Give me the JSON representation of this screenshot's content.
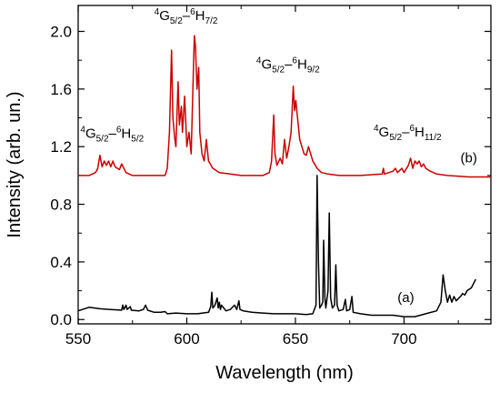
{
  "chart_data": {
    "type": "line",
    "title": "",
    "xlabel": "Wavelength (nm)",
    "ylabel": "Intensity (arb. un.)",
    "xlim": [
      550,
      740
    ],
    "ylim": [
      -0.03,
      2.18
    ],
    "xticks": [
      550,
      600,
      650,
      700
    ],
    "yticks": [
      0.0,
      0.4,
      0.8,
      1.2,
      1.6,
      2.0
    ],
    "x_tick_labels": [
      "550",
      "600",
      "650",
      "700"
    ],
    "y_tick_labels": [
      "0.0",
      "0.4",
      "0.8",
      "1.2",
      "1.6",
      "2.0"
    ],
    "grid": false,
    "series": [
      {
        "name": "(a)",
        "color": "#000000",
        "points": [
          [
            550,
            0.06
          ],
          [
            555,
            0.085
          ],
          [
            560,
            0.075
          ],
          [
            565,
            0.07
          ],
          [
            570,
            0.065
          ],
          [
            570.5,
            0.1
          ],
          [
            571,
            0.07
          ],
          [
            572,
            0.1
          ],
          [
            572.5,
            0.07
          ],
          [
            574,
            0.09
          ],
          [
            574.5,
            0.065
          ],
          [
            578,
            0.06
          ],
          [
            580,
            0.07
          ],
          [
            581,
            0.1
          ],
          [
            582,
            0.065
          ],
          [
            585,
            0.05
          ],
          [
            588,
            0.05
          ],
          [
            590,
            0.055
          ],
          [
            591,
            0.04
          ],
          [
            595,
            0.045
          ],
          [
            600,
            0.04
          ],
          [
            605,
            0.04
          ],
          [
            610,
            0.05
          ],
          [
            611,
            0.09
          ],
          [
            611.5,
            0.19
          ],
          [
            612,
            0.08
          ],
          [
            613,
            0.1
          ],
          [
            614,
            0.15
          ],
          [
            614.5,
            0.08
          ],
          [
            615,
            0.12
          ],
          [
            615.5,
            0.07
          ],
          [
            616,
            0.1
          ],
          [
            617,
            0.08
          ],
          [
            618,
            0.06
          ],
          [
            620,
            0.07
          ],
          [
            622,
            0.1
          ],
          [
            623,
            0.07
          ],
          [
            624,
            0.13
          ],
          [
            624.5,
            0.07
          ],
          [
            626,
            0.06
          ],
          [
            630,
            0.05
          ],
          [
            635,
            0.045
          ],
          [
            640,
            0.04
          ],
          [
            645,
            0.04
          ],
          [
            650,
            0.04
          ],
          [
            655,
            0.035
          ],
          [
            658,
            0.04
          ],
          [
            659.5,
            0.1
          ],
          [
            660,
            1.0
          ],
          [
            660.6,
            0.4
          ],
          [
            661.2,
            0.08
          ],
          [
            662,
            0.1
          ],
          [
            662.6,
            0.12
          ],
          [
            663,
            0.55
          ],
          [
            663.6,
            0.15
          ],
          [
            664,
            0.08
          ],
          [
            665,
            0.2
          ],
          [
            665.6,
            0.74
          ],
          [
            666.2,
            0.15
          ],
          [
            667,
            0.08
          ],
          [
            668,
            0.1
          ],
          [
            668.6,
            0.38
          ],
          [
            669.2,
            0.1
          ],
          [
            670,
            0.06
          ],
          [
            672,
            0.07
          ],
          [
            673,
            0.14
          ],
          [
            673.6,
            0.06
          ],
          [
            675,
            0.07
          ],
          [
            676,
            0.16
          ],
          [
            676.6,
            0.05
          ],
          [
            680,
            0.04
          ],
          [
            685,
            0.03
          ],
          [
            690,
            0.03
          ],
          [
            695,
            0.03
          ],
          [
            700,
            0.02
          ],
          [
            705,
            0.02
          ],
          [
            710,
            0.04
          ],
          [
            715,
            0.06
          ],
          [
            717,
            0.12
          ],
          [
            718,
            0.31
          ],
          [
            719,
            0.2
          ],
          [
            720,
            0.12
          ],
          [
            721,
            0.17
          ],
          [
            722,
            0.12
          ],
          [
            723,
            0.16
          ],
          [
            724,
            0.13
          ],
          [
            726,
            0.16
          ],
          [
            727,
            0.18
          ],
          [
            728,
            0.17
          ],
          [
            729,
            0.2
          ],
          [
            731,
            0.22
          ],
          [
            732,
            0.25
          ],
          [
            733,
            0.28
          ]
        ]
      },
      {
        "name": "(b)",
        "color": "#cc0000",
        "points": [
          [
            550,
            1.0
          ],
          [
            555,
            1.0
          ],
          [
            558,
            1.02
          ],
          [
            559,
            1.05
          ],
          [
            560,
            1.14
          ],
          [
            561,
            1.06
          ],
          [
            562,
            1.1
          ],
          [
            563,
            1.07
          ],
          [
            564,
            1.1
          ],
          [
            565,
            1.06
          ],
          [
            566,
            1.1
          ],
          [
            567,
            1.06
          ],
          [
            569,
            1.04
          ],
          [
            570,
            1.08
          ],
          [
            572,
            1.02
          ],
          [
            575,
            1.0
          ],
          [
            580,
            1.0
          ],
          [
            585,
            1.0
          ],
          [
            590,
            1.0
          ],
          [
            591,
            1.05
          ],
          [
            592,
            1.3
          ],
          [
            593,
            1.87
          ],
          [
            593.6,
            1.4
          ],
          [
            594.5,
            1.25
          ],
          [
            595,
            1.2
          ],
          [
            596,
            1.65
          ],
          [
            596.6,
            1.35
          ],
          [
            597.5,
            1.48
          ],
          [
            598,
            1.3
          ],
          [
            599,
            1.55
          ],
          [
            600,
            1.2
          ],
          [
            601,
            1.3
          ],
          [
            602,
            1.15
          ],
          [
            603,
            1.7
          ],
          [
            603.5,
            1.97
          ],
          [
            604,
            1.9
          ],
          [
            604.7,
            1.6
          ],
          [
            605.5,
            1.75
          ],
          [
            606,
            1.3
          ],
          [
            607,
            1.15
          ],
          [
            608,
            1.1
          ],
          [
            609,
            1.25
          ],
          [
            610,
            1.1
          ],
          [
            612,
            1.05
          ],
          [
            615,
            1.02
          ],
          [
            620,
            1.01
          ],
          [
            625,
            1.0
          ],
          [
            630,
            1.0
          ],
          [
            635,
            1.0
          ],
          [
            638,
            1.02
          ],
          [
            639,
            1.1
          ],
          [
            640,
            1.42
          ],
          [
            640.6,
            1.15
          ],
          [
            641.5,
            1.07
          ],
          [
            643,
            1.12
          ],
          [
            644,
            1.08
          ],
          [
            645,
            1.25
          ],
          [
            646,
            1.12
          ],
          [
            647,
            1.2
          ],
          [
            648,
            1.3
          ],
          [
            649,
            1.62
          ],
          [
            649.6,
            1.45
          ],
          [
            650.2,
            1.52
          ],
          [
            651,
            1.4
          ],
          [
            652,
            1.25
          ],
          [
            653,
            1.2
          ],
          [
            654,
            1.15
          ],
          [
            655,
            1.14
          ],
          [
            656,
            1.2
          ],
          [
            657,
            1.15
          ],
          [
            658,
            1.1
          ],
          [
            660,
            1.05
          ],
          [
            662,
            1.02
          ],
          [
            665,
            1.01
          ],
          [
            670,
            1.0
          ],
          [
            680,
            1.0
          ],
          [
            690,
            1.01
          ],
          [
            690.5,
            1.05
          ],
          [
            691,
            1.01
          ],
          [
            695,
            1.03
          ],
          [
            696,
            1.05
          ],
          [
            697,
            1.02
          ],
          [
            699,
            1.05
          ],
          [
            700,
            1.02
          ],
          [
            702,
            1.07
          ],
          [
            703,
            1.12
          ],
          [
            704,
            1.05
          ],
          [
            705,
            1.1
          ],
          [
            706,
            1.08
          ],
          [
            707,
            1.1
          ],
          [
            708,
            1.06
          ],
          [
            709,
            1.08
          ],
          [
            710,
            1.05
          ],
          [
            712,
            1.03
          ],
          [
            715,
            1.01
          ],
          [
            720,
            1.0
          ],
          [
            730,
            0.99
          ],
          [
            740,
            0.99
          ]
        ]
      }
    ],
    "annotations": [
      {
        "text": "(a)",
        "x": 697,
        "y": 0.12
      },
      {
        "text": "(b)",
        "x": 726,
        "y": 1.09
      },
      {
        "parts": [
          "4",
          "G",
          "5/2",
          "–",
          "6",
          "H",
          "5/2"
        ],
        "x": 551,
        "y": 1.26
      },
      {
        "parts": [
          "4",
          "G",
          "5/2",
          "–",
          "6",
          "H",
          "7/2"
        ],
        "x": 585,
        "y": 2.08
      },
      {
        "parts": [
          "4",
          "G",
          "5/2",
          "–",
          "6",
          "H",
          "9/2"
        ],
        "x": 632,
        "y": 1.74
      },
      {
        "parts": [
          "4",
          "G",
          "5/2",
          "–",
          "6",
          "H",
          "11/2"
        ],
        "x": 686,
        "y": 1.27
      }
    ]
  }
}
